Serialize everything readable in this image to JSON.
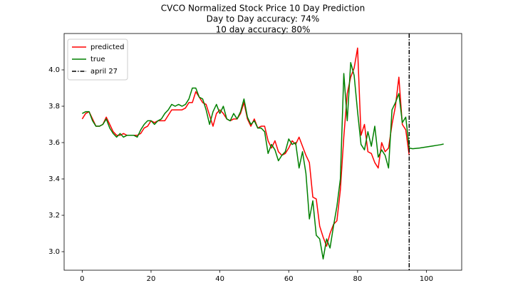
{
  "chart_data": {
    "type": "line",
    "title": "CVCO Normalized Stock Price 10 Day Prediction",
    "subtitles": [
      "Day to Day accuracy: 74%",
      "10 day accuracy: 80%"
    ],
    "x": [
      0,
      1,
      2,
      3,
      4,
      5,
      6,
      7,
      8,
      9,
      10,
      11,
      12,
      13,
      14,
      15,
      16,
      17,
      18,
      19,
      20,
      21,
      22,
      23,
      24,
      25,
      26,
      27,
      28,
      29,
      30,
      31,
      32,
      33,
      34,
      35,
      36,
      37,
      38,
      39,
      40,
      41,
      42,
      43,
      44,
      45,
      46,
      47,
      48,
      49,
      50,
      51,
      52,
      53,
      54,
      55,
      56,
      57,
      58,
      59,
      60,
      61,
      62,
      63,
      64,
      65,
      66,
      67,
      68,
      69,
      70,
      71,
      72,
      73,
      74,
      75,
      76,
      77,
      78,
      79,
      80,
      81,
      82,
      83,
      84,
      85,
      86,
      87,
      88,
      89,
      90,
      91,
      92,
      93,
      94,
      95,
      96,
      97,
      98,
      99,
      100,
      101,
      102,
      103,
      104,
      105
    ],
    "series": [
      {
        "name": "predicted",
        "color": "#ff0000",
        "values": [
          3.73,
          3.76,
          3.77,
          3.73,
          3.69,
          3.69,
          3.7,
          3.74,
          3.7,
          3.66,
          3.64,
          3.64,
          3.65,
          3.64,
          3.64,
          3.64,
          3.64,
          3.65,
          3.68,
          3.69,
          3.72,
          3.71,
          3.72,
          3.72,
          3.72,
          3.75,
          3.78,
          3.78,
          3.78,
          3.78,
          3.79,
          3.82,
          3.82,
          3.88,
          3.85,
          3.82,
          3.81,
          3.75,
          3.69,
          3.76,
          3.78,
          3.76,
          3.73,
          3.72,
          3.73,
          3.73,
          3.76,
          3.82,
          3.73,
          3.69,
          3.73,
          3.68,
          3.69,
          3.69,
          3.61,
          3.57,
          3.61,
          3.55,
          3.53,
          3.54,
          3.57,
          3.61,
          3.59,
          3.63,
          3.58,
          3.53,
          3.49,
          3.3,
          3.29,
          3.14,
          3.08,
          3.03,
          3.1,
          3.15,
          3.17,
          3.34,
          3.63,
          3.87,
          3.96,
          4.01,
          4.12,
          3.64,
          3.7,
          3.55,
          3.54,
          3.49,
          3.46,
          3.6,
          3.55,
          3.57,
          3.7,
          3.8,
          3.96,
          3.7,
          3.67,
          3.53,
          null,
          null,
          null,
          null,
          null,
          null,
          null,
          null,
          null,
          null
        ]
      },
      {
        "name": "true",
        "color": "#008000",
        "values": [
          3.76,
          3.77,
          3.77,
          3.72,
          3.69,
          3.69,
          3.7,
          3.73,
          3.68,
          3.65,
          3.63,
          3.65,
          3.63,
          3.64,
          3.64,
          3.64,
          3.63,
          3.67,
          3.7,
          3.72,
          3.72,
          3.7,
          3.72,
          3.73,
          3.76,
          3.78,
          3.81,
          3.8,
          3.81,
          3.8,
          3.81,
          3.84,
          3.9,
          3.9,
          3.85,
          3.84,
          3.78,
          3.7,
          3.77,
          3.81,
          3.76,
          3.8,
          3.73,
          3.72,
          3.76,
          3.73,
          3.77,
          3.84,
          3.74,
          3.7,
          3.72,
          3.68,
          3.68,
          3.66,
          3.54,
          3.59,
          3.56,
          3.5,
          3.53,
          3.55,
          3.62,
          3.59,
          3.6,
          3.46,
          3.55,
          3.43,
          3.18,
          3.28,
          3.09,
          3.07,
          2.96,
          3.07,
          3.02,
          3.14,
          3.25,
          3.4,
          3.98,
          3.72,
          4.04,
          3.97,
          3.77,
          3.59,
          3.56,
          3.66,
          3.58,
          3.69,
          3.52,
          3.56,
          3.53,
          3.46,
          3.78,
          3.82,
          3.87,
          3.71,
          3.74,
          3.57,
          3.566,
          3.568,
          3.57,
          3.573,
          3.576,
          3.579,
          3.582,
          3.585,
          3.588,
          3.592
        ]
      }
    ],
    "vline": {
      "x": 95,
      "name": "april 27",
      "color": "#000000"
    },
    "xlim": [
      -5.25,
      110.25
    ],
    "ylim": [
      2.898,
      4.2
    ],
    "xticks": [
      0,
      20,
      40,
      60,
      80,
      100
    ],
    "yticks": [
      {
        "value": 3.0,
        "label": "3.0"
      },
      3.2,
      3.4,
      3.6,
      3.8,
      {
        "value": 4.0,
        "label": "4.0"
      }
    ],
    "legend": "upper left",
    "grid": false
  }
}
